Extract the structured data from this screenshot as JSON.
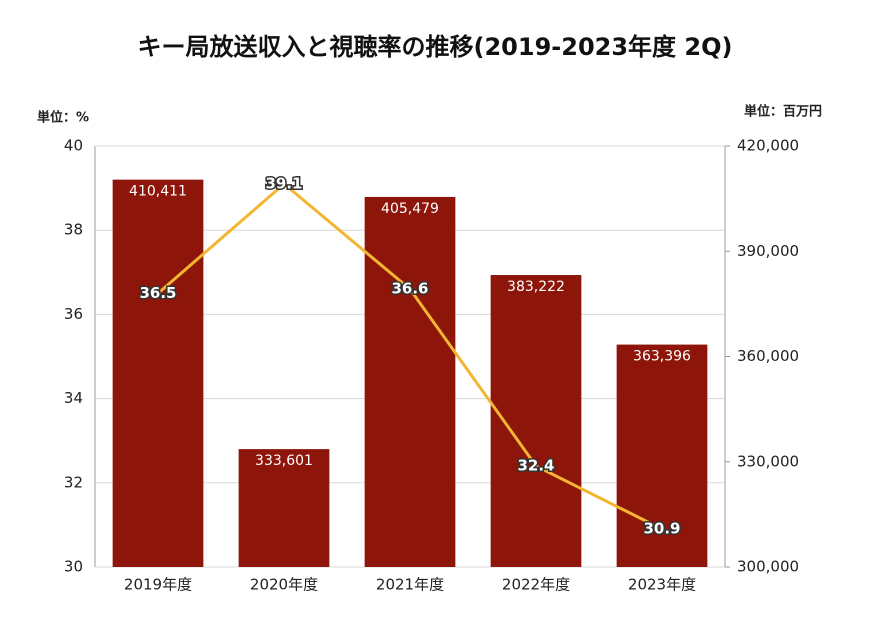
{
  "chart_data": {
    "type": "combo",
    "title": "キー局放送収入と視聴率の推移(2019-2023年度 2Q)",
    "y_unit_label": "単位：%",
    "y2_unit_label": "単位：百万円",
    "categories": [
      "2019年度",
      "2020年度",
      "2021年度",
      "2022年度",
      "2023年度"
    ],
    "series": [
      {
        "type": "bar",
        "axis": "y2",
        "color": "#8e1509",
        "values": [
          410411,
          333601,
          405479,
          383222,
          363396
        ],
        "value_labels": [
          "410,411",
          "333,601",
          "405,479",
          "383,222",
          "363,396"
        ]
      },
      {
        "type": "line",
        "color": "#f2b632",
        "values": [
          36.5,
          39.1,
          36.6,
          32.4,
          30.9
        ]
      }
    ],
    "ylim": [
      30,
      40
    ],
    "yticks": [
      30,
      32,
      34,
      36,
      38,
      40
    ],
    "y2lim": [
      300000,
      420000
    ],
    "y2ticks": [
      {
        "value": 300000,
        "label": "300,000"
      },
      {
        "value": 330000,
        "label": "330,000"
      },
      {
        "value": 360000,
        "label": "360,000"
      },
      {
        "value": 390000,
        "label": "390,000"
      },
      {
        "value": 420000,
        "label": "420,000"
      }
    ],
    "grid": true
  }
}
